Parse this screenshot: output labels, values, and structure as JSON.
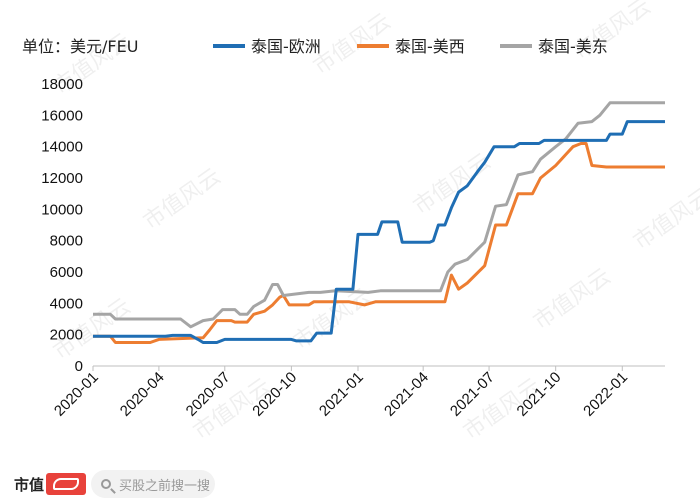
{
  "chart_data": {
    "type": "line",
    "unit_label": "单位：美元/FEU",
    "ylim": [
      0,
      18000
    ],
    "y_ticks": [
      "0",
      "2000",
      "4000",
      "6000",
      "8000",
      "10000",
      "12000",
      "14000",
      "16000",
      "18000"
    ],
    "x_ticks": [
      "2020-01",
      "2020-04",
      "2020-07",
      "2020-10",
      "2021-01",
      "2021-04",
      "2021-07",
      "2021-10",
      "2022-01"
    ],
    "legend_placement": "top",
    "grid": false,
    "series": [
      {
        "name": "泰国-欧洲",
        "color": "#1f6eb4",
        "points": [
          [
            "2020-01-01",
            1900
          ],
          [
            "2020-04-10",
            1900
          ],
          [
            "2020-04-20",
            1950
          ],
          [
            "2020-05-15",
            1950
          ],
          [
            "2020-05-25",
            1700
          ],
          [
            "2020-06-01",
            1500
          ],
          [
            "2020-06-20",
            1500
          ],
          [
            "2020-07-01",
            1700
          ],
          [
            "2020-10-01",
            1700
          ],
          [
            "2020-10-08",
            1600
          ],
          [
            "2020-10-28",
            1600
          ],
          [
            "2020-11-05",
            2100
          ],
          [
            "2020-11-25",
            2100
          ],
          [
            "2020-12-02",
            4900
          ],
          [
            "2020-12-25",
            4900
          ],
          [
            "2021-01-01",
            8400
          ],
          [
            "2021-01-28",
            8400
          ],
          [
            "2021-02-03",
            9200
          ],
          [
            "2021-02-25",
            9200
          ],
          [
            "2021-03-03",
            7900
          ],
          [
            "2021-04-10",
            7900
          ],
          [
            "2021-04-15",
            8000
          ],
          [
            "2021-04-22",
            9000
          ],
          [
            "2021-05-01",
            9000
          ],
          [
            "2021-05-10",
            10100
          ],
          [
            "2021-05-20",
            11100
          ],
          [
            "2021-06-01",
            11500
          ],
          [
            "2021-06-15",
            12400
          ],
          [
            "2021-06-25",
            13000
          ],
          [
            "2021-07-08",
            14000
          ],
          [
            "2021-08-05",
            14000
          ],
          [
            "2021-08-12",
            14200
          ],
          [
            "2021-09-08",
            14200
          ],
          [
            "2021-09-15",
            14400
          ],
          [
            "2021-12-10",
            14400
          ],
          [
            "2021-12-15",
            14800
          ],
          [
            "2022-01-01",
            14800
          ],
          [
            "2022-01-08",
            15600
          ],
          [
            "2022-03-01",
            15600
          ]
        ]
      },
      {
        "name": "泰国-美西",
        "color": "#ed7d31",
        "points": [
          [
            "2020-01-01",
            1900
          ],
          [
            "2020-01-25",
            1900
          ],
          [
            "2020-02-01",
            1500
          ],
          [
            "2020-03-20",
            1500
          ],
          [
            "2020-04-01",
            1700
          ],
          [
            "2020-06-01",
            1800
          ],
          [
            "2020-06-10",
            2300
          ],
          [
            "2020-06-20",
            2900
          ],
          [
            "2020-07-10",
            2900
          ],
          [
            "2020-07-15",
            2800
          ],
          [
            "2020-08-01",
            2800
          ],
          [
            "2020-08-10",
            3300
          ],
          [
            "2020-08-25",
            3500
          ],
          [
            "2020-09-05",
            3900
          ],
          [
            "2020-09-15",
            4400
          ],
          [
            "2020-09-20",
            4500
          ],
          [
            "2020-09-28",
            3900
          ],
          [
            "2020-10-25",
            3900
          ],
          [
            "2020-11-01",
            4100
          ],
          [
            "2020-12-20",
            4100
          ],
          [
            "2021-01-10",
            3900
          ],
          [
            "2021-01-25",
            4100
          ],
          [
            "2021-05-01",
            4100
          ],
          [
            "2021-05-10",
            5800
          ],
          [
            "2021-05-20",
            4900
          ],
          [
            "2021-06-01",
            5300
          ],
          [
            "2021-06-25",
            6400
          ],
          [
            "2021-07-10",
            9000
          ],
          [
            "2021-07-25",
            9000
          ],
          [
            "2021-08-10",
            11000
          ],
          [
            "2021-08-30",
            11000
          ],
          [
            "2021-09-10",
            12000
          ],
          [
            "2021-10-01",
            12800
          ],
          [
            "2021-10-15",
            13500
          ],
          [
            "2021-10-25",
            14000
          ],
          [
            "2021-11-05",
            14200
          ],
          [
            "2021-11-12",
            14200
          ],
          [
            "2021-11-20",
            12800
          ],
          [
            "2021-12-10",
            12700
          ],
          [
            "2022-03-01",
            12700
          ]
        ]
      },
      {
        "name": "泰国-美东",
        "color": "#a5a5a5",
        "points": [
          [
            "2020-01-01",
            3300
          ],
          [
            "2020-01-25",
            3300
          ],
          [
            "2020-02-01",
            3000
          ],
          [
            "2020-03-20",
            3000
          ],
          [
            "2020-04-01",
            3000
          ],
          [
            "2020-05-01",
            3000
          ],
          [
            "2020-05-15",
            2500
          ],
          [
            "2020-06-01",
            2900
          ],
          [
            "2020-06-15",
            3000
          ],
          [
            "2020-06-28",
            3600
          ],
          [
            "2020-07-15",
            3600
          ],
          [
            "2020-07-22",
            3300
          ],
          [
            "2020-08-01",
            3300
          ],
          [
            "2020-08-10",
            3800
          ],
          [
            "2020-08-25",
            4200
          ],
          [
            "2020-09-05",
            5200
          ],
          [
            "2020-09-12",
            5200
          ],
          [
            "2020-09-20",
            4500
          ],
          [
            "2020-10-25",
            4700
          ],
          [
            "2020-11-10",
            4700
          ],
          [
            "2020-12-01",
            4800
          ],
          [
            "2021-01-15",
            4700
          ],
          [
            "2021-02-01",
            4800
          ],
          [
            "2021-04-25",
            4800
          ],
          [
            "2021-05-05",
            6000
          ],
          [
            "2021-05-15",
            6500
          ],
          [
            "2021-06-01",
            6800
          ],
          [
            "2021-06-25",
            7900
          ],
          [
            "2021-07-10",
            10200
          ],
          [
            "2021-07-25",
            10300
          ],
          [
            "2021-08-10",
            12200
          ],
          [
            "2021-08-30",
            12400
          ],
          [
            "2021-09-10",
            13200
          ],
          [
            "2021-10-01",
            14000
          ],
          [
            "2021-10-15",
            14500
          ],
          [
            "2021-11-01",
            15500
          ],
          [
            "2021-11-20",
            15600
          ],
          [
            "2021-12-01",
            16000
          ],
          [
            "2021-12-15",
            16800
          ],
          [
            "2022-03-01",
            16800
          ]
        ]
      }
    ]
  },
  "watermark": "市值风云",
  "footer": {
    "brand_text": "市值",
    "search_placeholder": "买股之前搜一搜"
  }
}
